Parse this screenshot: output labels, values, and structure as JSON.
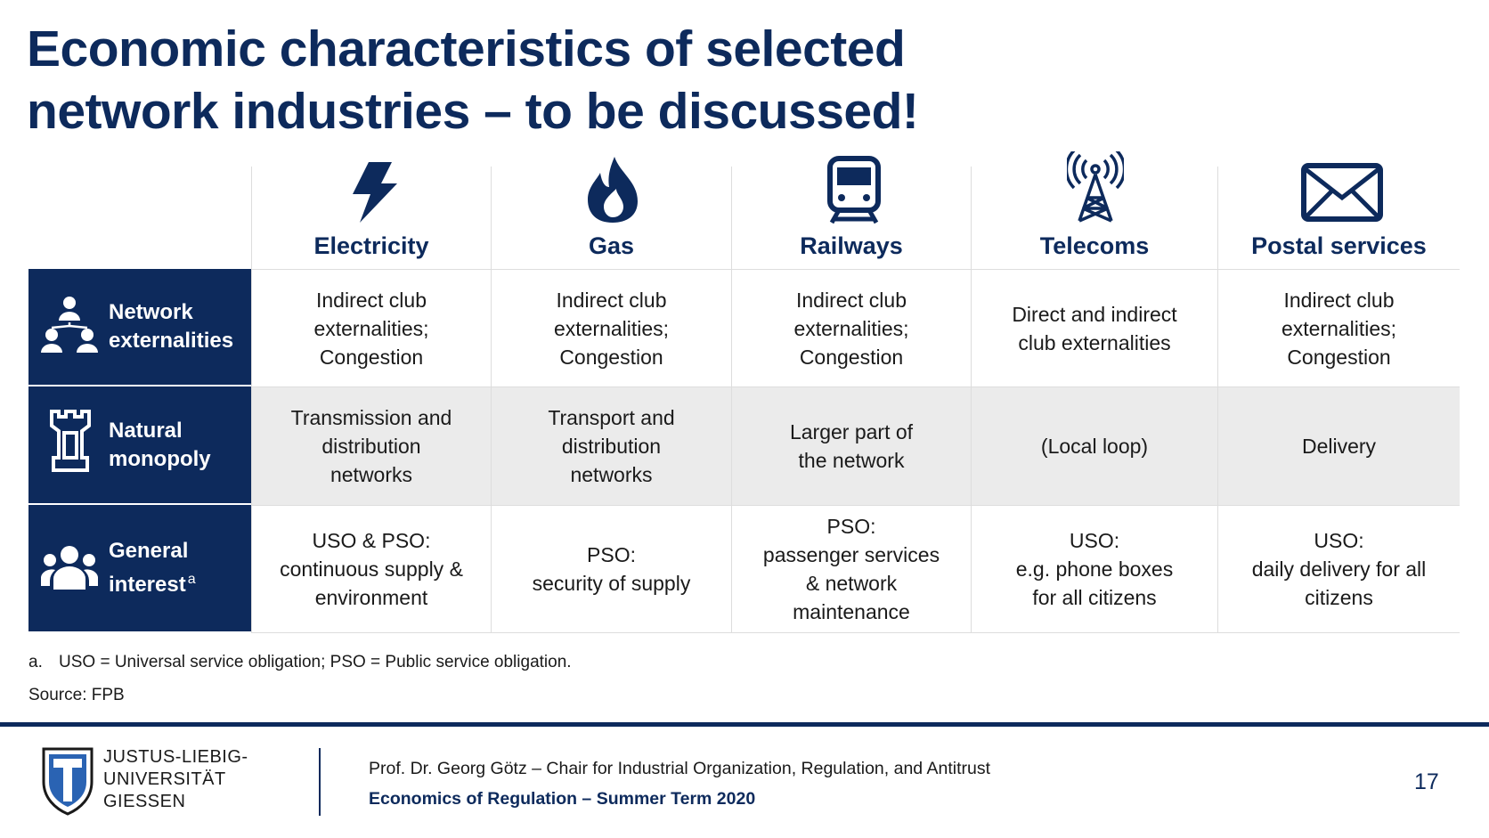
{
  "title": [
    "Economic characteristics of selected",
    "network industries – to be discussed!"
  ],
  "table": {
    "columns": [
      "Electricity",
      "Gas",
      "Railways",
      "Telecoms",
      "Postal services"
    ],
    "rows": [
      {
        "label": [
          "Network",
          "externalities"
        ],
        "cells": [
          [
            "Indirect club",
            "externalities;",
            "Congestion"
          ],
          [
            "Indirect club",
            "externalities;",
            "Congestion"
          ],
          [
            "Indirect club",
            "externalities;",
            "Congestion"
          ],
          [
            "Direct and indirect",
            "club externalities"
          ],
          [
            "Indirect club",
            "externalities;",
            "Congestion"
          ]
        ]
      },
      {
        "label": [
          "Natural",
          "monopoly"
        ],
        "cells": [
          [
            "Transmission and",
            "distribution",
            "networks"
          ],
          [
            "Transport and",
            "distribution",
            "networks"
          ],
          [
            "Larger part of",
            "the network"
          ],
          [
            "(Local loop)"
          ],
          [
            "Delivery"
          ]
        ]
      },
      {
        "label": [
          "General",
          "interest"
        ],
        "note": "a",
        "cells": [
          [
            "USO & PSO:",
            "continuous supply &",
            "environment"
          ],
          [
            "PSO:",
            "security of supply"
          ],
          [
            "PSO:",
            "passenger services",
            "& network",
            "maintenance"
          ],
          [
            "USO:",
            "e.g. phone boxes",
            "for all citizens"
          ],
          [
            "USO:",
            "daily delivery for all",
            "citizens"
          ]
        ]
      }
    ]
  },
  "footnote": {
    "mark": "a.",
    "text": "USO = Universal service obligation; PSO = Public service obligation."
  },
  "source": "Source: FPB",
  "footer": {
    "university": [
      "JUSTUS-LIEBIG-",
      "UNIVERSITÄT",
      "GIESSEN"
    ],
    "author": "Prof. Dr. Georg Götz – Chair for Industrial Organization, Regulation, and Antitrust",
    "course": "Economics of Regulation – Summer Term 2020",
    "page": "17"
  }
}
